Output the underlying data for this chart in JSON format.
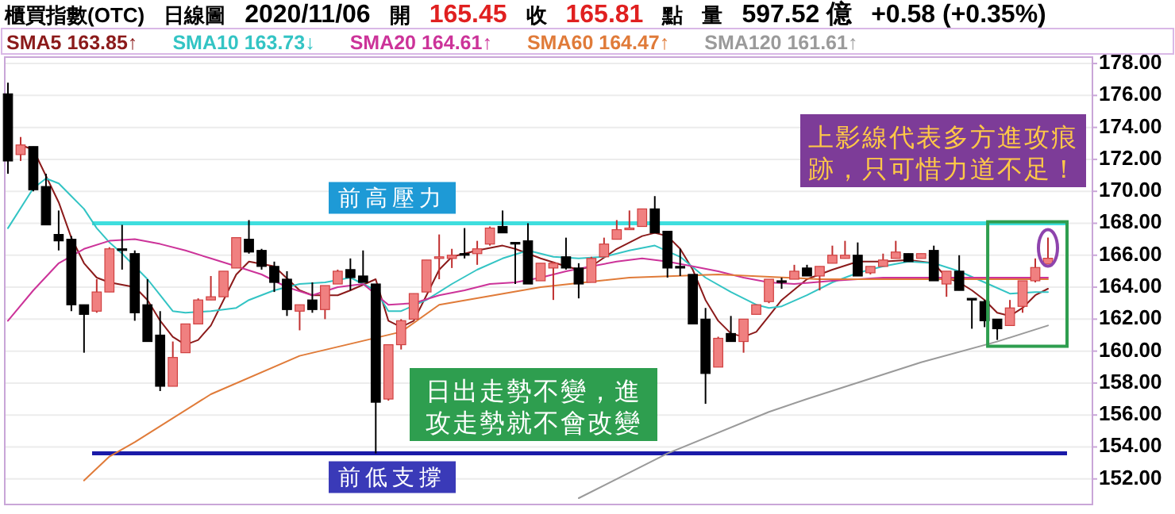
{
  "chart_data": {
    "type": "candlestick",
    "title": "櫃買指數(OTC)",
    "subtitle": "日線圖",
    "annotations": [
      "2020/11/06",
      "開",
      "165.45",
      "收",
      "165.81",
      "點",
      "量",
      "597.52 億",
      "+0.58 (+0.35%)",
      "上影線代表多方進攻痕跡，只可惜力道不足！",
      "日出走勢不變，進攻走勢就不會改變"
    ],
    "categories": [
      null,
      null,
      null,
      null,
      null,
      null,
      null,
      null,
      null,
      null,
      null,
      null,
      null,
      null,
      null,
      null,
      null,
      null,
      null,
      null,
      null,
      null,
      null,
      null,
      null,
      null,
      null,
      null,
      null,
      null,
      null,
      null,
      null,
      null,
      null,
      null,
      null,
      null,
      null,
      null,
      null,
      null,
      null,
      null,
      null,
      null,
      null,
      null,
      null,
      null,
      null,
      null,
      null,
      null,
      null,
      null,
      null,
      null,
      null,
      null,
      null,
      null,
      null,
      null,
      null,
      null,
      null,
      null,
      null,
      null,
      null,
      null,
      null,
      null,
      null,
      null,
      null,
      null,
      null,
      null,
      null,
      null,
      null
    ],
    "ohlc": [
      [
        176.1,
        176.8,
        171.1,
        171.9
      ],
      [
        172.3,
        173.4,
        171.9,
        172.9
      ],
      [
        172.8,
        172.8,
        170.0,
        170.1
      ],
      [
        170.3,
        171.1,
        167.9,
        167.9
      ],
      [
        167.3,
        168.8,
        166.3,
        166.9
      ],
      [
        167.0,
        167.2,
        162.5,
        162.9
      ],
      [
        162.9,
        162.9,
        159.9,
        162.3
      ],
      [
        162.5,
        164.5,
        162.4,
        163.7
      ],
      [
        163.7,
        166.5,
        163.7,
        166.4
      ],
      [
        166.4,
        167.9,
        165.1,
        166.3
      ],
      [
        166.1,
        166.3,
        161.9,
        162.4
      ],
      [
        162.9,
        164.5,
        160.6,
        160.6
      ],
      [
        161.0,
        162.5,
        157.5,
        157.8
      ],
      [
        157.8,
        160.6,
        157.8,
        159.6
      ],
      [
        159.9,
        161.7,
        159.9,
        161.7
      ],
      [
        161.7,
        163.3,
        161.7,
        163.2
      ],
      [
        163.2,
        164.7,
        163.2,
        163.4
      ],
      [
        163.4,
        165.0,
        163.4,
        165.0
      ],
      [
        165.2,
        167.1,
        165.2,
        167.1
      ],
      [
        167.0,
        168.2,
        166.1,
        166.2
      ],
      [
        166.3,
        166.4,
        165.1,
        165.3
      ],
      [
        165.3,
        165.6,
        163.7,
        164.3
      ],
      [
        164.5,
        165.0,
        162.2,
        162.6
      ],
      [
        162.5,
        162.9,
        161.3,
        162.9
      ],
      [
        163.2,
        164.3,
        162.4,
        162.6
      ],
      [
        162.6,
        164.1,
        162.0,
        164.1
      ],
      [
        164.2,
        165.1,
        164.2,
        165.0
      ],
      [
        165.1,
        165.8,
        163.8,
        164.6
      ],
      [
        164.7,
        166.3,
        164.3,
        164.3
      ],
      [
        164.2,
        164.2,
        153.6,
        156.8
      ],
      [
        157.0,
        160.4,
        156.9,
        160.4
      ],
      [
        160.4,
        162.0,
        160.1,
        161.9
      ],
      [
        162.0,
        163.6,
        162.0,
        163.6
      ],
      [
        163.7,
        165.7,
        163.7,
        165.7
      ],
      [
        165.8,
        167.3,
        164.5,
        165.9
      ],
      [
        165.8,
        166.4,
        165.2,
        166.0
      ],
      [
        166.1,
        167.7,
        165.8,
        166.0
      ],
      [
        166.1,
        166.9,
        165.4,
        166.4
      ],
      [
        166.7,
        167.8,
        166.6,
        167.7
      ],
      [
        167.8,
        168.8,
        167.4,
        167.4
      ],
      [
        166.8,
        166.8,
        164.2,
        166.7
      ],
      [
        166.9,
        168.0,
        164.2,
        164.2
      ],
      [
        164.4,
        165.5,
        164.4,
        165.5
      ],
      [
        165.2,
        165.6,
        163.2,
        165.5
      ],
      [
        165.9,
        167.1,
        165.1,
        165.2
      ],
      [
        165.2,
        165.5,
        163.3,
        164.2
      ],
      [
        164.3,
        165.9,
        164.3,
        165.8
      ],
      [
        165.9,
        167.1,
        165.9,
        166.7
      ],
      [
        167.0,
        168.2,
        167.0,
        167.6
      ],
      [
        167.6,
        168.8,
        167.6,
        167.7
      ],
      [
        167.8,
        168.9,
        167.8,
        168.9
      ],
      [
        168.9,
        169.7,
        167.4,
        167.4
      ],
      [
        167.5,
        167.5,
        164.6,
        165.2
      ],
      [
        165.3,
        166.4,
        164.7,
        165.2
      ],
      [
        164.8,
        164.8,
        161.7,
        161.7
      ],
      [
        162.0,
        162.7,
        156.7,
        158.6
      ],
      [
        159.0,
        160.9,
        159.0,
        160.8
      ],
      [
        161.1,
        162.2,
        160.6,
        160.6
      ],
      [
        160.6,
        162.0,
        159.9,
        162.0
      ],
      [
        162.3,
        162.9,
        162.3,
        162.9
      ],
      [
        163.1,
        164.5,
        163.0,
        164.5
      ],
      [
        164.4,
        164.6,
        163.9,
        164.3
      ],
      [
        164.5,
        165.4,
        164.5,
        165.0
      ],
      [
        165.2,
        165.4,
        164.7,
        164.7
      ],
      [
        164.7,
        165.3,
        163.8,
        165.3
      ],
      [
        165.5,
        166.6,
        165.5,
        166.0
      ],
      [
        165.8,
        166.9,
        165.8,
        166.0
      ],
      [
        166.0,
        166.8,
        164.7,
        164.7
      ],
      [
        164.9,
        165.3,
        164.8,
        165.3
      ],
      [
        165.3,
        166.1,
        165.3,
        165.7
      ],
      [
        165.8,
        166.9,
        165.8,
        166.2
      ],
      [
        166.1,
        166.1,
        165.6,
        165.6
      ],
      [
        165.8,
        166.1,
        165.8,
        166.1
      ],
      [
        166.3,
        166.6,
        164.4,
        164.4
      ],
      [
        164.2,
        165.0,
        163.4,
        165.0
      ],
      [
        165.0,
        166.0,
        163.8,
        163.8
      ],
      [
        163.3,
        163.3,
        161.4,
        163.2
      ],
      [
        163.1,
        163.2,
        161.5,
        161.9
      ],
      [
        162.0,
        162.0,
        160.7,
        161.4
      ],
      [
        161.6,
        163.2,
        161.6,
        162.7
      ],
      [
        162.8,
        164.4,
        162.4,
        164.4
      ],
      [
        164.4,
        165.8,
        164.3,
        165.23
      ],
      [
        165.45,
        167.1,
        165.45,
        165.81
      ]
    ],
    "series": [
      {
        "name": "SMA5 163.85↑",
        "color": "#8b1a1a",
        "type": "line",
        "values": [
          null,
          172.9,
          172.6,
          null,
          169.3,
          167.1,
          165.5,
          164.6,
          164.3,
          null,
          164.0,
          163.2,
          161.9,
          160.9,
          160.4,
          160.7,
          161.6,
          163.2,
          164.8,
          165.6,
          null,
          165.3,
          null,
          163.8,
          163.5,
          null,
          163.5,
          163.8,
          null,
          164.5,
          161.9,
          161.5,
          161.9,
          163.5,
          165.1,
          165.9,
          null,
          166.3,
          null,
          166.6,
          166.4,
          null,
          165.8,
          null,
          165.3,
          165.1,
          165.3,
          null,
          166.4,
          null,
          167.2,
          167.4,
          167.2,
          166.4,
          165.1,
          163.2,
          161.9,
          161.1,
          160.9,
          161.2,
          162.2,
          163.2,
          null,
          164.5,
          null,
          165.1,
          null,
          165.6,
          null,
          165.6,
          null,
          165.7,
          null,
          165.5,
          164.6,
          164.3,
          163.8,
          163.2,
          162.4,
          162.2,
          162.7,
          163.5,
          163.9
        ]
      },
      {
        "name": "SMA10 163.73↓",
        "color": "#33c4c4",
        "type": "line",
        "values": [
          167.7,
          null,
          170.2,
          170.8,
          170.5,
          169.7,
          168.9,
          167.7,
          166.8,
          166.1,
          null,
          164.5,
          163.5,
          162.5,
          162.4,
          null,
          162.5,
          null,
          162.7,
          163.2,
          null,
          163.8,
          null,
          164.2,
          null,
          164.3,
          null,
          164.6,
          null,
          163.8,
          162.5,
          162.5,
          null,
          163.2,
          null,
          164.2,
          null,
          165.1,
          null,
          165.8,
          null,
          166.3,
          null,
          165.9,
          null,
          165.8,
          null,
          165.9,
          null,
          166.3,
          null,
          166.6,
          null,
          165.9,
          null,
          164.6,
          null,
          163.7,
          null,
          162.9,
          162.7,
          162.8,
          null,
          163.5,
          null,
          164.3,
          null,
          164.9,
          null,
          165.3,
          null,
          165.6,
          null,
          165.5,
          null,
          165.0,
          null,
          164.3,
          null,
          163.6,
          null,
          163.7,
          163.7
        ]
      },
      {
        "name": "SMA20 164.61↑",
        "color": "#cc3399",
        "type": "line",
        "values": [
          161.9,
          null,
          163.8,
          null,
          165.5,
          null,
          166.4,
          null,
          166.9,
          null,
          167.0,
          null,
          166.7,
          null,
          166.3,
          null,
          165.8,
          null,
          165.3,
          null,
          164.8,
          null,
          164.0,
          null,
          163.5,
          null,
          164.0,
          null,
          164.2,
          null,
          162.9,
          null,
          163.0,
          null,
          163.5,
          null,
          163.8,
          null,
          164.2,
          null,
          164.3,
          null,
          164.6,
          null,
          165.0,
          null,
          165.3,
          null,
          165.6,
          null,
          165.8,
          null,
          165.6,
          null,
          165.3,
          null,
          165.0,
          null,
          164.6,
          null,
          164.3,
          null,
          164.2,
          null,
          null,
          164.4,
          null,
          null,
          null,
          164.6,
          null,
          null,
          null,
          164.6,
          null,
          null,
          null,
          164.6,
          null,
          null,
          null,
          null,
          164.6
        ]
      },
      {
        "name": "SMA60 164.47↑",
        "color": "#e07b39",
        "type": "line",
        "values": [
          null,
          null,
          null,
          null,
          null,
          null,
          151.9,
          null,
          153.4,
          null,
          154.3,
          null,
          null,
          null,
          null,
          null,
          157.3,
          null,
          null,
          null,
          null,
          null,
          null,
          159.7,
          null,
          null,
          null,
          null,
          null,
          null,
          null,
          161.2,
          null,
          null,
          162.9,
          null,
          null,
          null,
          null,
          null,
          null,
          null,
          164.0,
          null,
          null,
          null,
          null,
          null,
          null,
          164.6,
          null,
          null,
          null,
          null,
          null,
          null,
          164.8,
          null,
          null,
          null,
          null,
          null,
          null,
          null,
          164.5,
          null,
          null,
          null,
          null,
          null,
          null,
          null,
          null,
          null,
          164.5,
          null,
          null,
          null,
          null,
          null,
          null,
          null,
          164.5
        ]
      },
      {
        "name": "SMA120 161.61↑",
        "color": "#9a9a9a",
        "type": "line",
        "values": [
          null,
          null,
          null,
          null,
          null,
          null,
          null,
          null,
          null,
          null,
          null,
          null,
          null,
          null,
          null,
          null,
          null,
          null,
          null,
          null,
          null,
          null,
          null,
          null,
          null,
          null,
          null,
          null,
          null,
          null,
          null,
          null,
          null,
          null,
          null,
          null,
          null,
          null,
          null,
          null,
          null,
          null,
          null,
          null,
          null,
          150.8,
          null,
          null,
          null,
          null,
          null,
          null,
          153.6,
          null,
          null,
          null,
          null,
          null,
          null,
          null,
          156.2,
          null,
          null,
          157.0,
          null,
          null,
          null,
          null,
          null,
          null,
          null,
          null,
          159.3,
          null,
          null,
          null,
          null,
          null,
          160.6,
          null,
          null,
          null,
          161.6
        ]
      }
    ],
    "ylim": [
      150.4,
      178.4
    ],
    "yticks": [
      {
        "value": 152,
        "label": "152.00"
      },
      {
        "value": 154,
        "label": "154.00"
      },
      {
        "value": 156,
        "label": "156.00"
      },
      {
        "value": 158,
        "label": "158.00"
      },
      {
        "value": 160,
        "label": "160.00"
      },
      {
        "value": 162,
        "label": "162.00"
      },
      {
        "value": 164,
        "label": "164.00"
      },
      {
        "value": 166,
        "label": "166.00"
      },
      {
        "value": 168,
        "label": "168.00"
      },
      {
        "value": 170,
        "label": "170.00"
      },
      {
        "value": 172,
        "label": "172.00"
      },
      {
        "value": 174,
        "label": "174.00"
      },
      {
        "value": 176,
        "label": "176.00"
      },
      {
        "value": 178,
        "label": "178.00"
      }
    ],
    "tick_labels": "y",
    "grid": "y",
    "legend": "top",
    "ref_lines": [
      {
        "axis": "y",
        "value": 168.0,
        "label": "前高壓力",
        "color": "#3fdede"
      },
      {
        "axis": "y",
        "value": 153.6,
        "label": "前低支撐",
        "color": "#1a1aa8"
      }
    ]
  }
}
